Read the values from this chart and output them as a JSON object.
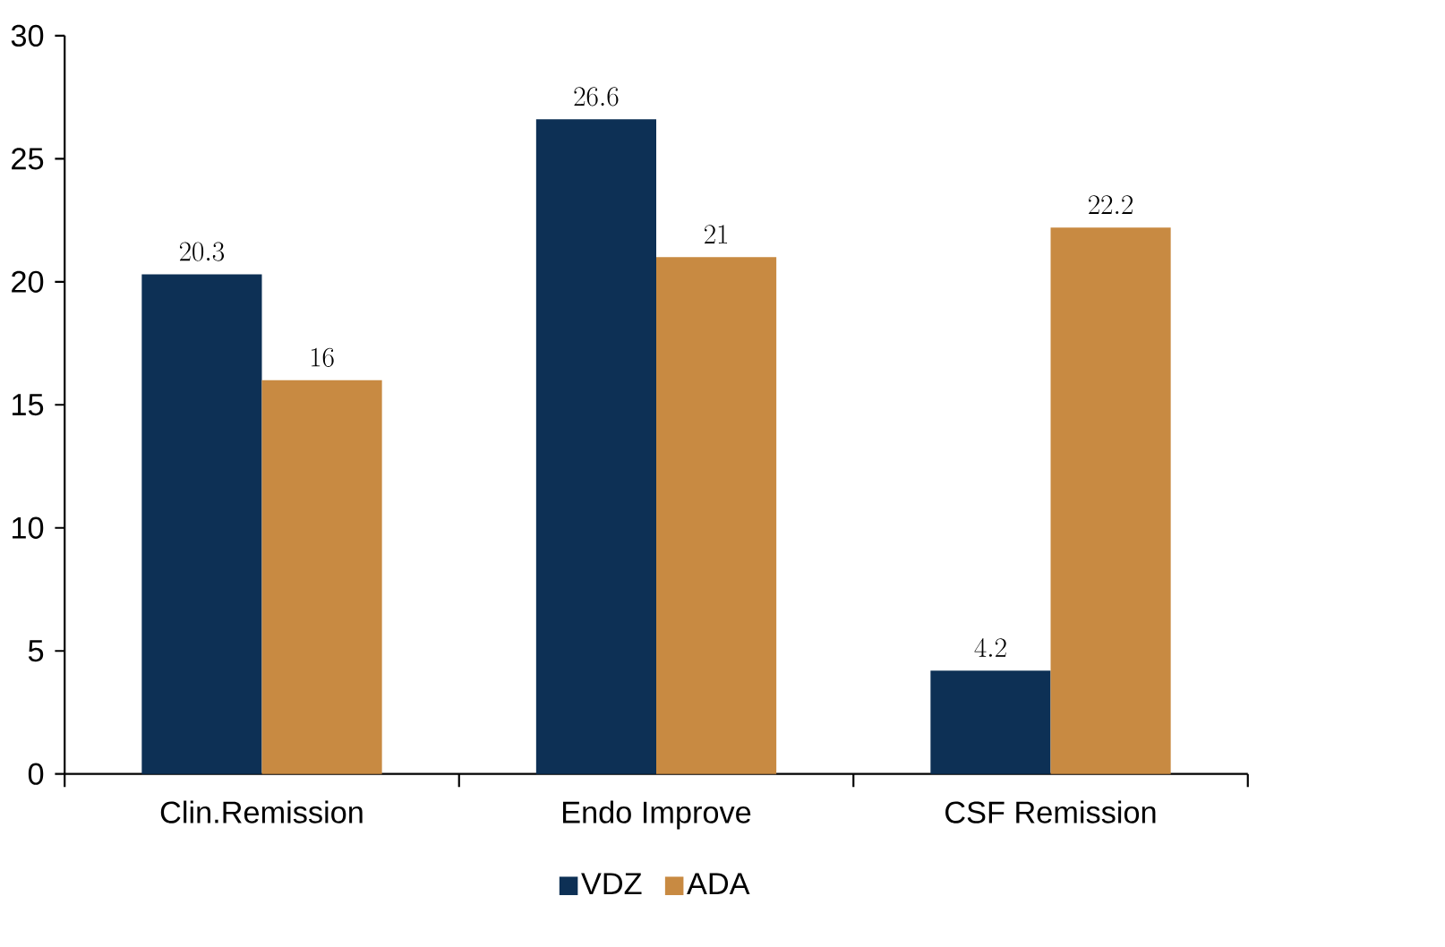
{
  "chart_data": {
    "type": "bar",
    "categories": [
      "Clin.Remission",
      "Endo Improve",
      "CSF Remission"
    ],
    "series": [
      {
        "name": "VDZ",
        "color": "#0d3055",
        "values": [
          20.3,
          26.6,
          4.2
        ]
      },
      {
        "name": "ADA",
        "color": "#c88a42",
        "values": [
          16,
          21,
          22.2
        ]
      }
    ],
    "ylim": [
      0,
      30
    ],
    "yticks": [
      0,
      5,
      10,
      15,
      20,
      25,
      30
    ],
    "data_labels": true,
    "legend": "bottom",
    "grid": false
  }
}
